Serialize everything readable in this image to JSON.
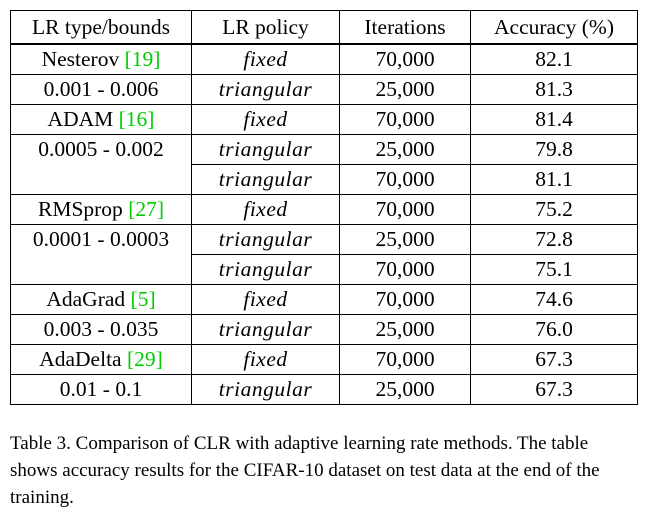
{
  "table": {
    "headers": [
      "LR type/bounds",
      "LR policy",
      "Iterations",
      "Accuracy (%)"
    ],
    "rows": [
      {
        "method": "Nesterov ",
        "cite": "[19]",
        "policy": "fixed",
        "iterations": "70,000",
        "accuracy": "82.1"
      },
      {
        "method": "0.001 - 0.006",
        "cite": "",
        "policy": "triangular",
        "iterations": "25,000",
        "accuracy": "81.3"
      },
      {
        "method": "ADAM ",
        "cite": "[16]",
        "policy": "fixed",
        "iterations": "70,000",
        "accuracy": "81.4"
      },
      {
        "method": "0.0005 - 0.002",
        "cite": "",
        "policy": "triangular",
        "iterations": "25,000",
        "accuracy": "79.8"
      },
      {
        "method": "",
        "cite": "",
        "policy": "triangular",
        "iterations": "70,000",
        "accuracy": "81.1"
      },
      {
        "method": "RMSprop ",
        "cite": "[27]",
        "policy": "fixed",
        "iterations": "70,000",
        "accuracy": "75.2"
      },
      {
        "method": "0.0001 - 0.0003",
        "cite": "",
        "policy": "triangular",
        "iterations": "25,000",
        "accuracy": "72.8"
      },
      {
        "method": "",
        "cite": "",
        "policy": "triangular",
        "iterations": "70,000",
        "accuracy": "75.1"
      },
      {
        "method": "AdaGrad ",
        "cite": "[5]",
        "policy": "fixed",
        "iterations": "70,000",
        "accuracy": "74.6"
      },
      {
        "method": "0.003 - 0.035",
        "cite": "",
        "policy": "triangular",
        "iterations": "25,000",
        "accuracy": "76.0"
      },
      {
        "method": "AdaDelta ",
        "cite": "[29]",
        "policy": "fixed",
        "iterations": "70,000",
        "accuracy": "67.3"
      },
      {
        "method": "0.01 - 0.1",
        "cite": "",
        "policy": "triangular",
        "iterations": "25,000",
        "accuracy": "67.3"
      }
    ]
  },
  "caption": "Table 3. Comparison of CLR with adaptive learning rate methods. The table shows accuracy results for the CIFAR-10 dataset on test data at the end of the training.",
  "colors": {
    "citation": "#00cc00",
    "text": "#000000",
    "background": "#ffffff"
  }
}
